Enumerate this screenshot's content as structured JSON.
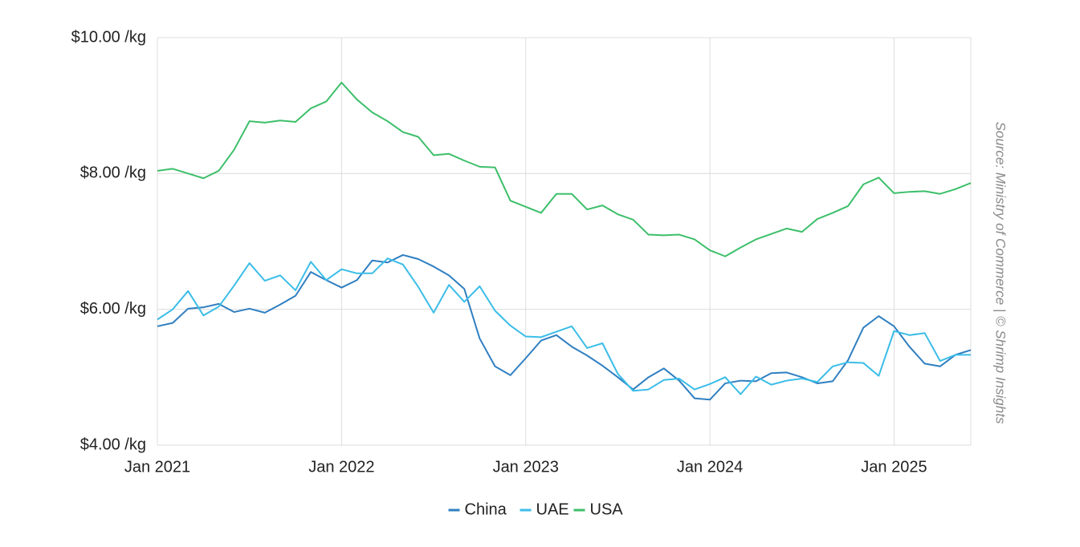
{
  "chart_data": {
    "type": "line",
    "source": "Source: Ministry of Commerce | © Shrimp Insights",
    "x": [
      "2021-01",
      "2021-02",
      "2021-03",
      "2021-04",
      "2021-05",
      "2021-06",
      "2021-07",
      "2021-08",
      "2021-09",
      "2021-10",
      "2021-11",
      "2021-12",
      "2022-01",
      "2022-02",
      "2022-03",
      "2022-04",
      "2022-05",
      "2022-06",
      "2022-07",
      "2022-08",
      "2022-09",
      "2022-10",
      "2022-11",
      "2022-12",
      "2023-01",
      "2023-02",
      "2023-03",
      "2023-04",
      "2023-05",
      "2023-06",
      "2023-07",
      "2023-08",
      "2023-09",
      "2023-10",
      "2023-11",
      "2023-12",
      "2024-01",
      "2024-02",
      "2024-03",
      "2024-04",
      "2024-05",
      "2024-06",
      "2024-07",
      "2024-08",
      "2024-09",
      "2024-10",
      "2024-11",
      "2024-12",
      "2025-01",
      "2025-02",
      "2025-03",
      "2025-04",
      "2025-05",
      "2025-06"
    ],
    "series": [
      {
        "name": "China",
        "color": "#2f7fc1",
        "values": [
          5.75,
          5.8,
          6.01,
          6.03,
          6.08,
          5.96,
          6.01,
          5.95,
          6.07,
          6.2,
          6.55,
          6.43,
          6.32,
          6.43,
          6.72,
          6.69,
          6.8,
          6.74,
          6.63,
          6.5,
          6.3,
          5.57,
          5.16,
          5.03,
          5.28,
          5.54,
          5.62,
          5.45,
          5.32,
          5.17,
          5.0,
          4.82,
          5.0,
          5.13,
          4.95,
          4.69,
          4.67,
          4.91,
          4.95,
          4.94,
          5.06,
          5.07,
          5.0,
          4.91,
          4.94,
          5.25,
          5.73,
          5.9,
          5.75,
          5.45,
          5.2,
          5.16,
          5.33,
          5.4
        ]
      },
      {
        "name": "UAE",
        "color": "#3bbde8",
        "values": [
          5.85,
          6.0,
          6.27,
          5.91,
          6.04,
          6.35,
          6.68,
          6.42,
          6.5,
          6.28,
          6.7,
          6.43,
          6.59,
          6.53,
          6.53,
          6.75,
          6.66,
          6.33,
          5.95,
          6.36,
          6.11,
          6.34,
          5.98,
          5.76,
          5.6,
          5.59,
          5.67,
          5.75,
          5.43,
          5.5,
          5.05,
          4.8,
          4.82,
          4.96,
          4.98,
          4.82,
          4.9,
          5.0,
          4.75,
          5.01,
          4.89,
          4.95,
          4.98,
          4.93,
          5.16,
          5.22,
          5.21,
          5.02,
          5.68,
          5.62,
          5.65,
          5.24,
          5.33,
          5.33
        ]
      },
      {
        "name": "USA",
        "color": "#3dbf6a",
        "values": [
          8.04,
          8.07,
          8.0,
          7.93,
          8.04,
          8.35,
          8.77,
          8.75,
          8.78,
          8.76,
          8.96,
          9.06,
          9.34,
          9.09,
          8.9,
          8.77,
          8.61,
          8.54,
          8.27,
          8.29,
          8.19,
          8.1,
          8.09,
          7.6,
          7.51,
          7.42,
          7.7,
          7.7,
          7.47,
          7.53,
          7.4,
          7.32,
          7.1,
          7.09,
          7.1,
          7.03,
          6.87,
          6.78,
          6.91,
          7.03,
          7.11,
          7.19,
          7.14,
          7.33,
          7.42,
          7.52,
          7.84,
          7.94,
          7.71,
          7.73,
          7.74,
          7.7,
          7.77,
          7.86
        ]
      }
    ],
    "ylim": [
      4,
      10
    ],
    "yticks": [
      {
        "value": 4,
        "label": "$4.00 /kg"
      },
      {
        "value": 6,
        "label": "$6.00 /kg"
      },
      {
        "value": 8,
        "label": "$8.00 /kg"
      },
      {
        "value": 10,
        "label": "$10.00 /kg"
      }
    ],
    "xticks": [
      {
        "value": "2021-01",
        "label": "Jan 2021"
      },
      {
        "value": "2022-01",
        "label": "Jan 2022"
      },
      {
        "value": "2023-01",
        "label": "Jan 2023"
      },
      {
        "value": "2024-01",
        "label": "Jan 2024"
      },
      {
        "value": "2025-01",
        "label": "Jan 2025"
      }
    ],
    "grid": true,
    "legend": "bottom"
  }
}
